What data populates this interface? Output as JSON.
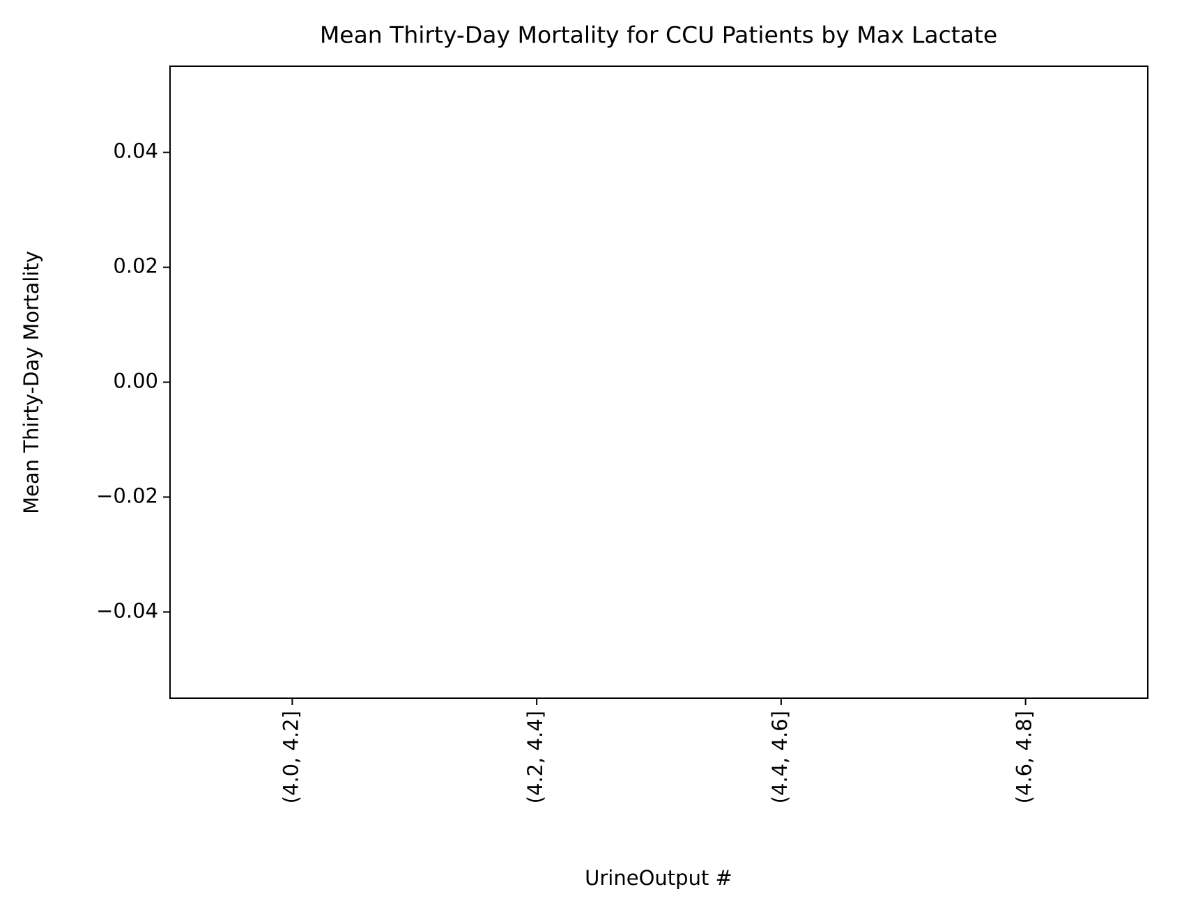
{
  "chart_data": {
    "type": "bar",
    "title": "Mean Thirty-Day Mortality for CCU Patients by Max Lactate",
    "x_label": "UrineOutput #",
    "y_label": "Mean Thirty-Day Mortality",
    "categories": [
      "(4.0, 4.2]",
      "(4.2, 4.4]",
      "(4.4, 4.6]",
      "(4.6, 4.8]"
    ],
    "values": [
      null,
      null,
      null,
      null
    ],
    "color": "#1f77b4",
    "ylim": [
      -0.055,
      0.055
    ],
    "yticks": [
      {
        "value": -0.04,
        "label": "−0.04"
      },
      {
        "value": -0.02,
        "label": "−0.02"
      },
      {
        "value": 0,
        "label": "0.00"
      },
      0.02,
      0.04
    ],
    "grid": false
  }
}
